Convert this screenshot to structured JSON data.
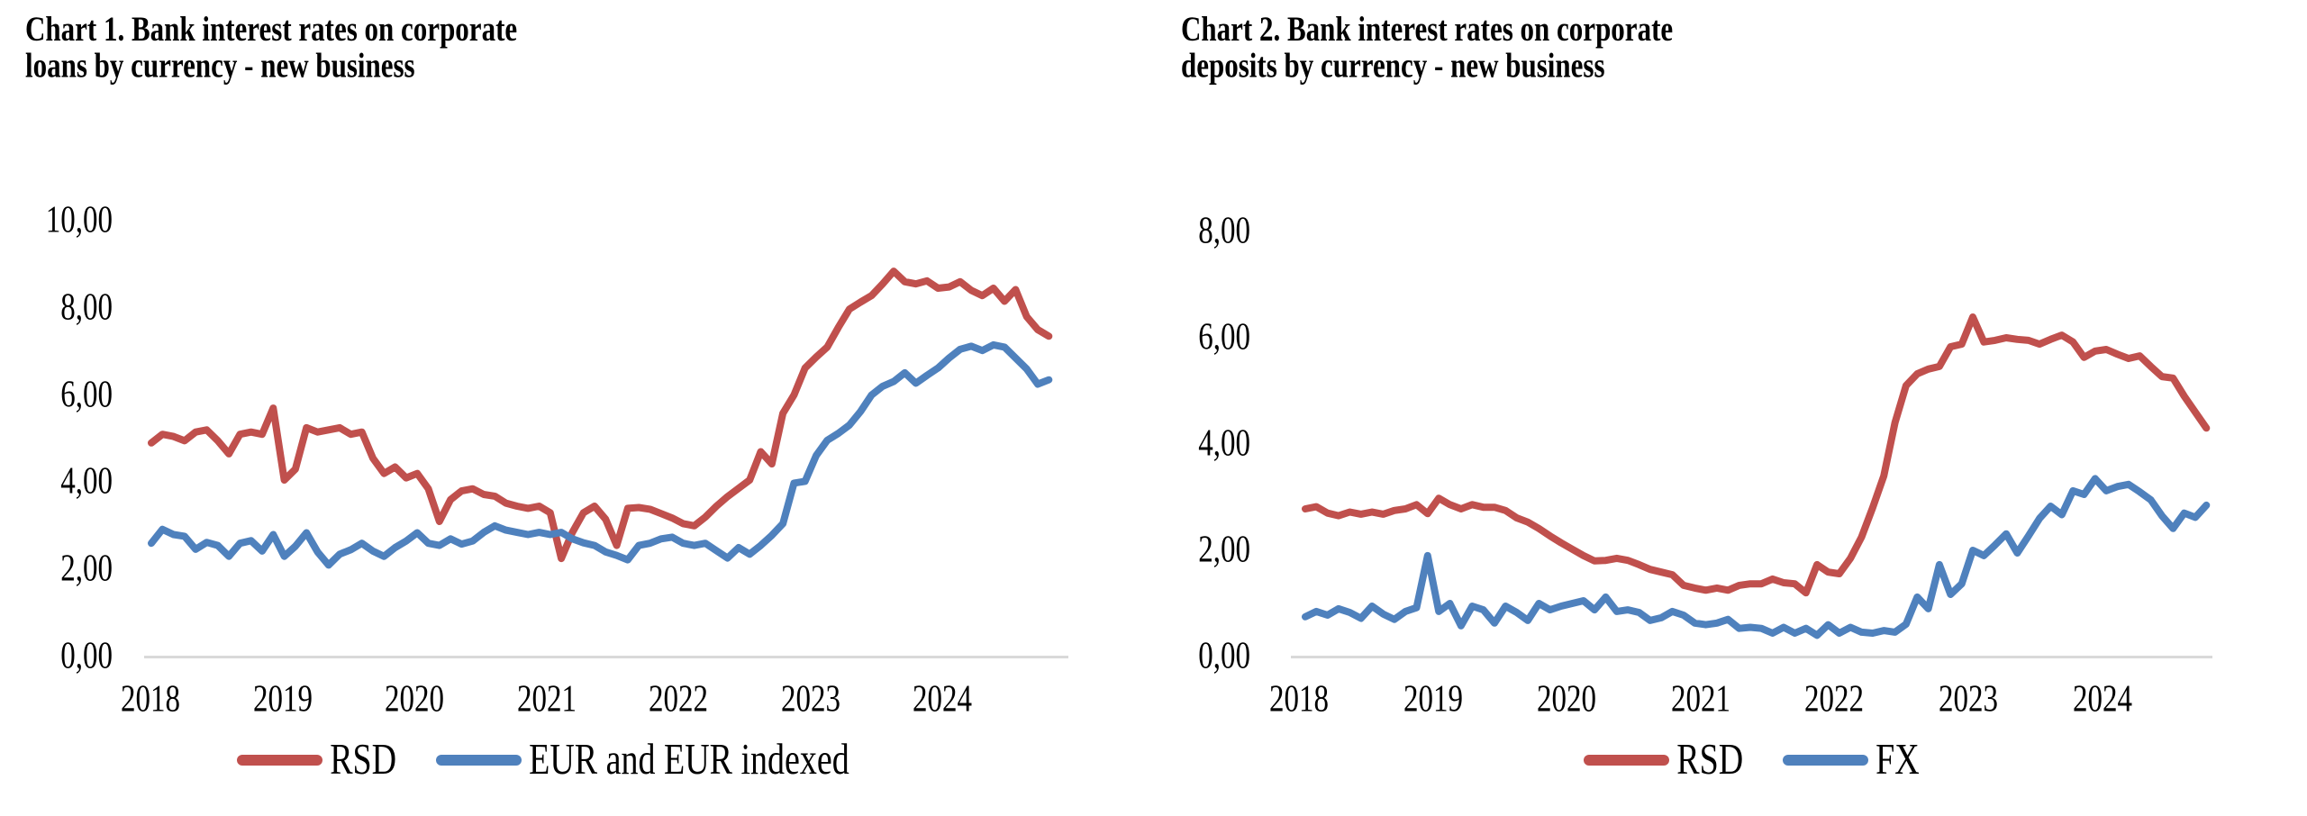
{
  "page": {
    "background": "#ffffff"
  },
  "chart_data": [
    {
      "id": "chart1",
      "type": "line",
      "title_lines": [
        "Chart 1. Bank interest rates on corporate",
        "loans by currency - new business"
      ],
      "y_ticks": [
        "10,00",
        "8,00",
        "6,00",
        "4,00",
        "2,00",
        "0,00"
      ],
      "x_ticks": [
        "2018",
        "2019",
        "2020",
        "2021",
        "2022",
        "2023",
        "2024"
      ],
      "ylim": [
        0,
        10
      ],
      "x_frequency": "monthly",
      "x_range": "Jan 2018 - Oct 2024",
      "grid": "off",
      "legend_position": "bottom",
      "axis_color": "#D9D9D9",
      "legend": [
        {
          "label": "RSD",
          "color": "#C0504D"
        },
        {
          "label": "EUR and EUR indexed",
          "color": "#4F81BD"
        }
      ],
      "series": [
        {
          "name": "RSD",
          "key": "rsd",
          "color": "#C0504D",
          "values": [
            4.9,
            5.1,
            5.05,
            4.95,
            5.15,
            5.2,
            4.95,
            4.65,
            5.1,
            5.15,
            5.1,
            5.7,
            4.05,
            4.3,
            5.25,
            5.15,
            5.2,
            5.25,
            5.1,
            5.15,
            4.55,
            4.2,
            4.35,
            4.1,
            4.2,
            3.85,
            3.1,
            3.6,
            3.8,
            3.85,
            3.72,
            3.68,
            3.52,
            3.45,
            3.4,
            3.45,
            3.3,
            2.25,
            2.85,
            3.3,
            3.45,
            3.15,
            2.55,
            3.4,
            3.42,
            3.38,
            3.28,
            3.18,
            3.05,
            3.0,
            3.2,
            3.45,
            3.67,
            3.86,
            4.05,
            4.7,
            4.42,
            5.58,
            6.0,
            6.62,
            6.87,
            7.1,
            7.55,
            7.97,
            8.13,
            8.28,
            8.55,
            8.84,
            8.6,
            8.55,
            8.62,
            8.45,
            8.48,
            8.6,
            8.4,
            8.28,
            8.45,
            8.15,
            8.42,
            7.8,
            7.5,
            7.35
          ]
        },
        {
          "name": "EUR and EUR indexed",
          "key": "eur",
          "color": "#4F81BD",
          "values": [
            2.6,
            2.92,
            2.8,
            2.76,
            2.46,
            2.62,
            2.55,
            2.3,
            2.6,
            2.66,
            2.42,
            2.8,
            2.3,
            2.53,
            2.84,
            2.4,
            2.1,
            2.35,
            2.45,
            2.6,
            2.42,
            2.3,
            2.5,
            2.65,
            2.84,
            2.6,
            2.55,
            2.7,
            2.58,
            2.65,
            2.85,
            3.0,
            2.9,
            2.85,
            2.8,
            2.85,
            2.8,
            2.85,
            2.7,
            2.61,
            2.55,
            2.4,
            2.32,
            2.22,
            2.55,
            2.6,
            2.7,
            2.74,
            2.6,
            2.55,
            2.6,
            2.43,
            2.26,
            2.5,
            2.35,
            2.55,
            2.78,
            3.05,
            3.98,
            4.02,
            4.61,
            4.96,
            5.12,
            5.31,
            5.62,
            6.0,
            6.2,
            6.31,
            6.51,
            6.27,
            6.45,
            6.62,
            6.85,
            7.05,
            7.12,
            7.02,
            7.15,
            7.1,
            6.85,
            6.6,
            6.25,
            6.35
          ]
        }
      ]
    },
    {
      "id": "chart2",
      "type": "line",
      "title_lines": [
        "Chart 2. Bank interest rates on corporate",
        "deposits by currency - new business"
      ],
      "y_ticks": [
        "8,00",
        "6,00",
        "4,00",
        "2,00",
        "0,00"
      ],
      "x_ticks": [
        "2018",
        "2019",
        "2020",
        "2021",
        "2022",
        "2023",
        "2024"
      ],
      "ylim": [
        0,
        8
      ],
      "x_frequency": "monthly",
      "x_range": "Jan 2018 - Oct 2024",
      "grid": "off",
      "legend_position": "bottom",
      "axis_color": "#D9D9D9",
      "legend": [
        {
          "label": "RSD",
          "color": "#C0504D"
        },
        {
          "label": "FX",
          "color": "#4F81BD"
        }
      ],
      "series": [
        {
          "name": "RSD",
          "key": "rsd",
          "color": "#C0504D",
          "values": [
            2.78,
            2.82,
            2.7,
            2.65,
            2.72,
            2.68,
            2.72,
            2.68,
            2.75,
            2.78,
            2.86,
            2.69,
            2.98,
            2.86,
            2.78,
            2.86,
            2.81,
            2.81,
            2.75,
            2.61,
            2.53,
            2.41,
            2.27,
            2.14,
            2.02,
            1.9,
            1.8,
            1.81,
            1.85,
            1.81,
            1.73,
            1.64,
            1.59,
            1.54,
            1.34,
            1.29,
            1.25,
            1.29,
            1.25,
            1.34,
            1.37,
            1.37,
            1.46,
            1.39,
            1.37,
            1.2,
            1.73,
            1.59,
            1.56,
            1.85,
            2.25,
            2.8,
            3.4,
            4.4,
            5.1,
            5.32,
            5.41,
            5.46,
            5.83,
            5.88,
            6.39,
            5.92,
            5.95,
            6.0,
            5.97,
            5.95,
            5.88,
            5.97,
            6.05,
            5.92,
            5.63,
            5.75,
            5.78,
            5.69,
            5.61,
            5.66,
            5.46,
            5.27,
            5.24,
            4.9,
            4.6,
            4.3
          ]
        },
        {
          "name": "FX",
          "key": "fx",
          "color": "#4F81BD",
          "values": [
            0.75,
            0.85,
            0.78,
            0.9,
            0.83,
            0.72,
            0.95,
            0.8,
            0.7,
            0.85,
            0.92,
            1.9,
            0.85,
            1.0,
            0.58,
            0.95,
            0.88,
            0.63,
            0.95,
            0.83,
            0.68,
            1.0,
            0.88,
            0.95,
            1.0,
            1.05,
            0.88,
            1.12,
            0.85,
            0.88,
            0.83,
            0.68,
            0.73,
            0.85,
            0.78,
            0.63,
            0.6,
            0.63,
            0.7,
            0.53,
            0.55,
            0.53,
            0.44,
            0.55,
            0.44,
            0.53,
            0.4,
            0.6,
            0.44,
            0.55,
            0.46,
            0.44,
            0.49,
            0.46,
            0.61,
            1.12,
            0.9,
            1.73,
            1.17,
            1.37,
            2.0,
            1.9,
            2.1,
            2.31,
            1.95,
            2.27,
            2.6,
            2.83,
            2.67,
            3.12,
            3.05,
            3.35,
            3.12,
            3.2,
            3.24,
            3.1,
            2.95,
            2.65,
            2.41,
            2.7,
            2.62,
            2.85
          ]
        }
      ]
    }
  ]
}
